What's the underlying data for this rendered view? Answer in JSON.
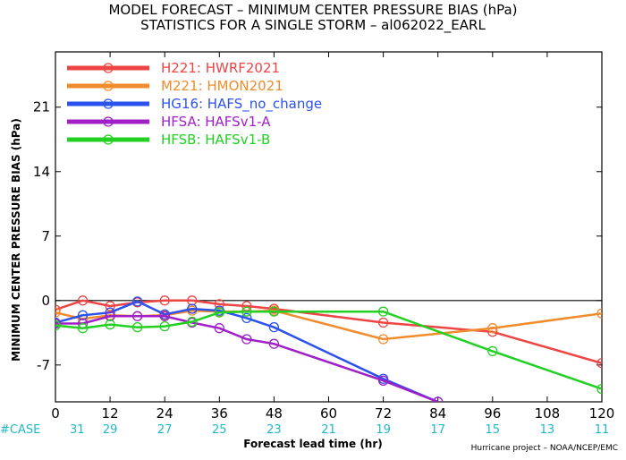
{
  "chart_data": {
    "type": "line",
    "title_line1": "MODEL FORECAST – MINIMUM CENTER PRESSURE BIAS (hPa)",
    "title_line2": "STATISTICS FOR A SINGLE STORM – al062022_EARL",
    "xlabel": "Forecast lead time (hr)",
    "ylabel": "MINIMUM CENTER PRESSURE BIAS (hPa)",
    "xlim": [
      0,
      120
    ],
    "ylim": [
      -11,
      27
    ],
    "x_ticks": [
      "0",
      "12",
      "24",
      "36",
      "48",
      "60",
      "72",
      "84",
      "96",
      "108",
      "120"
    ],
    "y_ticks": [
      "21",
      "14",
      "7",
      "0",
      "-7"
    ],
    "y_tick_values": [
      21,
      14,
      7,
      0,
      -7
    ],
    "zero_line": true,
    "legend_position": "top-left",
    "series": [
      {
        "name": "H221:  HWRF2021",
        "color": "#ee4444",
        "x": [
          0,
          6,
          12,
          18,
          24,
          30,
          36,
          42,
          48,
          72,
          96,
          120
        ],
        "y": [
          -1.0,
          0.0,
          -0.6,
          -0.2,
          0.0,
          0.0,
          -0.4,
          -0.6,
          -0.9,
          -2.4,
          -3.4,
          -6.8
        ]
      },
      {
        "name": "M221:  HMON2021",
        "color": "#f08c2c",
        "x": [
          0,
          6,
          12,
          18,
          24,
          30,
          36,
          42,
          48,
          72,
          96,
          120
        ],
        "y": [
          -1.3,
          -2.0,
          -1.6,
          -1.7,
          -1.6,
          -1.1,
          -1.2,
          -1.2,
          -1.1,
          -4.2,
          -3.0,
          -1.4
        ]
      },
      {
        "name": "HG16:  HAFS_no_change",
        "color": "#2c52ee",
        "x": [
          0,
          6,
          12,
          18,
          24,
          30,
          36,
          42,
          48,
          72,
          84
        ],
        "y": [
          -2.4,
          -1.6,
          -1.3,
          -0.1,
          -1.5,
          -0.9,
          -1.1,
          -1.9,
          -2.9,
          -8.5,
          -11.0
        ]
      },
      {
        "name": "HFSA:  HAFSv1-A",
        "color": "#a020c8",
        "x": [
          0,
          6,
          12,
          18,
          24,
          30,
          36,
          42,
          48,
          72,
          84
        ],
        "y": [
          -2.5,
          -2.5,
          -1.7,
          -1.7,
          -1.7,
          -2.4,
          -3.0,
          -4.2,
          -4.7,
          -8.7,
          -11.0
        ]
      },
      {
        "name": "HFSB:  HAFSv1-B",
        "color": "#22d022",
        "x": [
          0,
          6,
          12,
          18,
          24,
          30,
          36,
          42,
          48,
          72,
          96,
          120
        ],
        "y": [
          -2.7,
          -3.0,
          -2.6,
          -2.9,
          -2.8,
          -2.3,
          -1.3,
          -1.2,
          -1.2,
          -1.2,
          -5.5,
          -9.6
        ]
      }
    ],
    "case_label": "#CASE",
    "case_x": [
      0,
      12,
      24,
      36,
      48,
      60,
      72,
      84,
      96,
      108,
      120
    ],
    "case_counts": [
      "31",
      "29",
      "27",
      "25",
      "23",
      "21",
      "19",
      "17",
      "15",
      "13",
      "11"
    ]
  },
  "credit": "Hurricane project – NOAA/NCEP/EMC"
}
